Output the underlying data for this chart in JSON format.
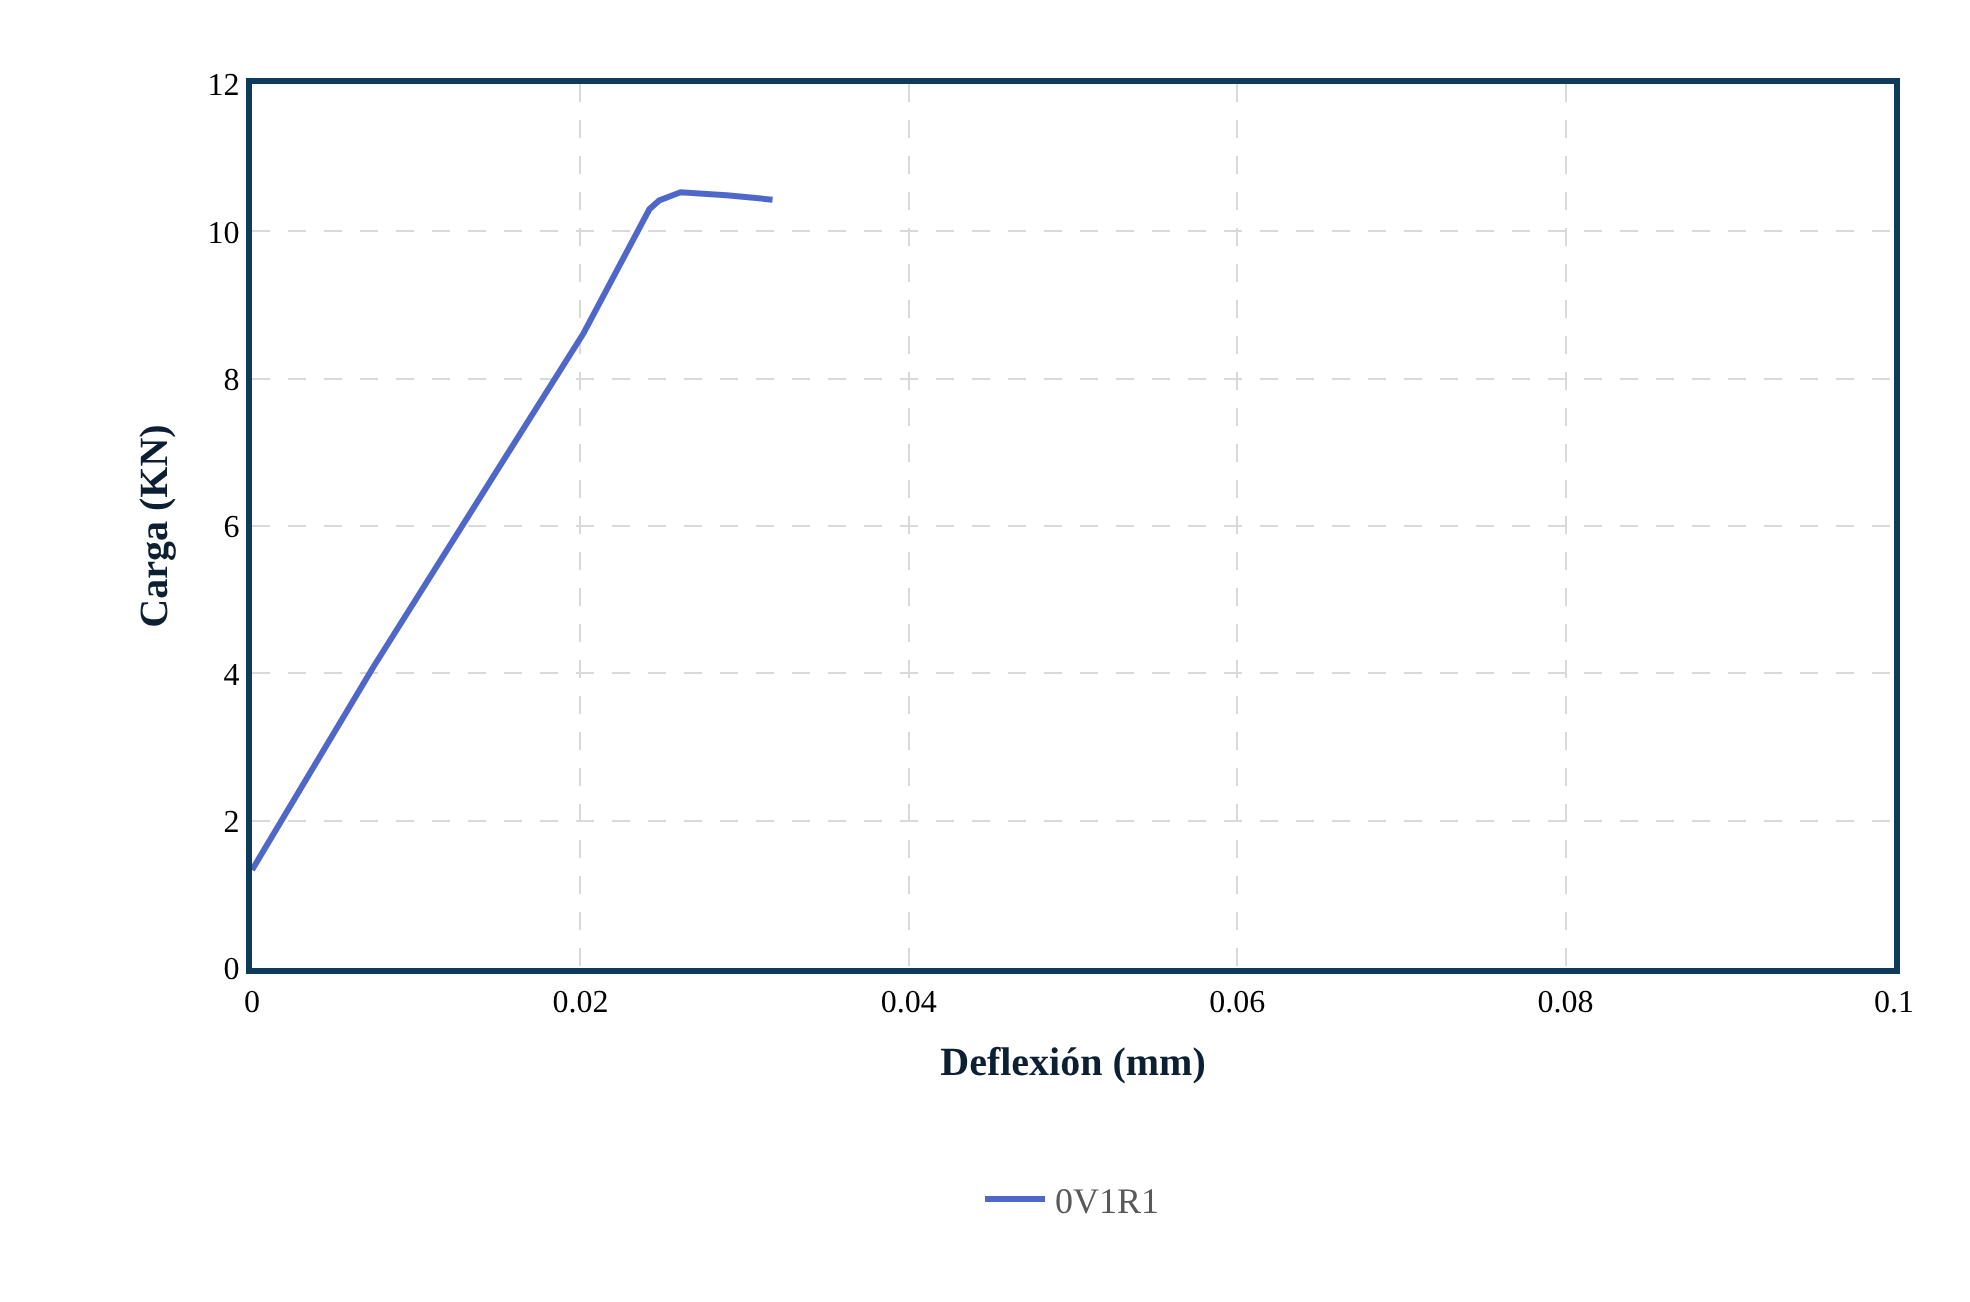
{
  "chart_data": {
    "type": "line",
    "xlabel": "Deflexión (mm)",
    "ylabel": "Carga (KN)",
    "series": [
      {
        "name": "0V1R1",
        "color": "#4f67c8",
        "x": [
          0,
          0.0074,
          0.0202,
          0.0242,
          0.0248,
          0.0261,
          0.0289,
          0.0317
        ],
        "values": [
          1.33,
          4.09,
          8.62,
          10.3,
          10.42,
          10.53,
          10.49,
          10.43
        ]
      }
    ],
    "xlim": [
      0,
      0.1
    ],
    "xticks": [
      0,
      0.02,
      0.04,
      0.06,
      0.08,
      0.1
    ],
    "ylim": [
      0,
      12
    ],
    "yticks": [
      0,
      2,
      4,
      6,
      8,
      10,
      12
    ],
    "grid": true,
    "legend": "bottom",
    "marker": "none",
    "line_style": "solid"
  }
}
